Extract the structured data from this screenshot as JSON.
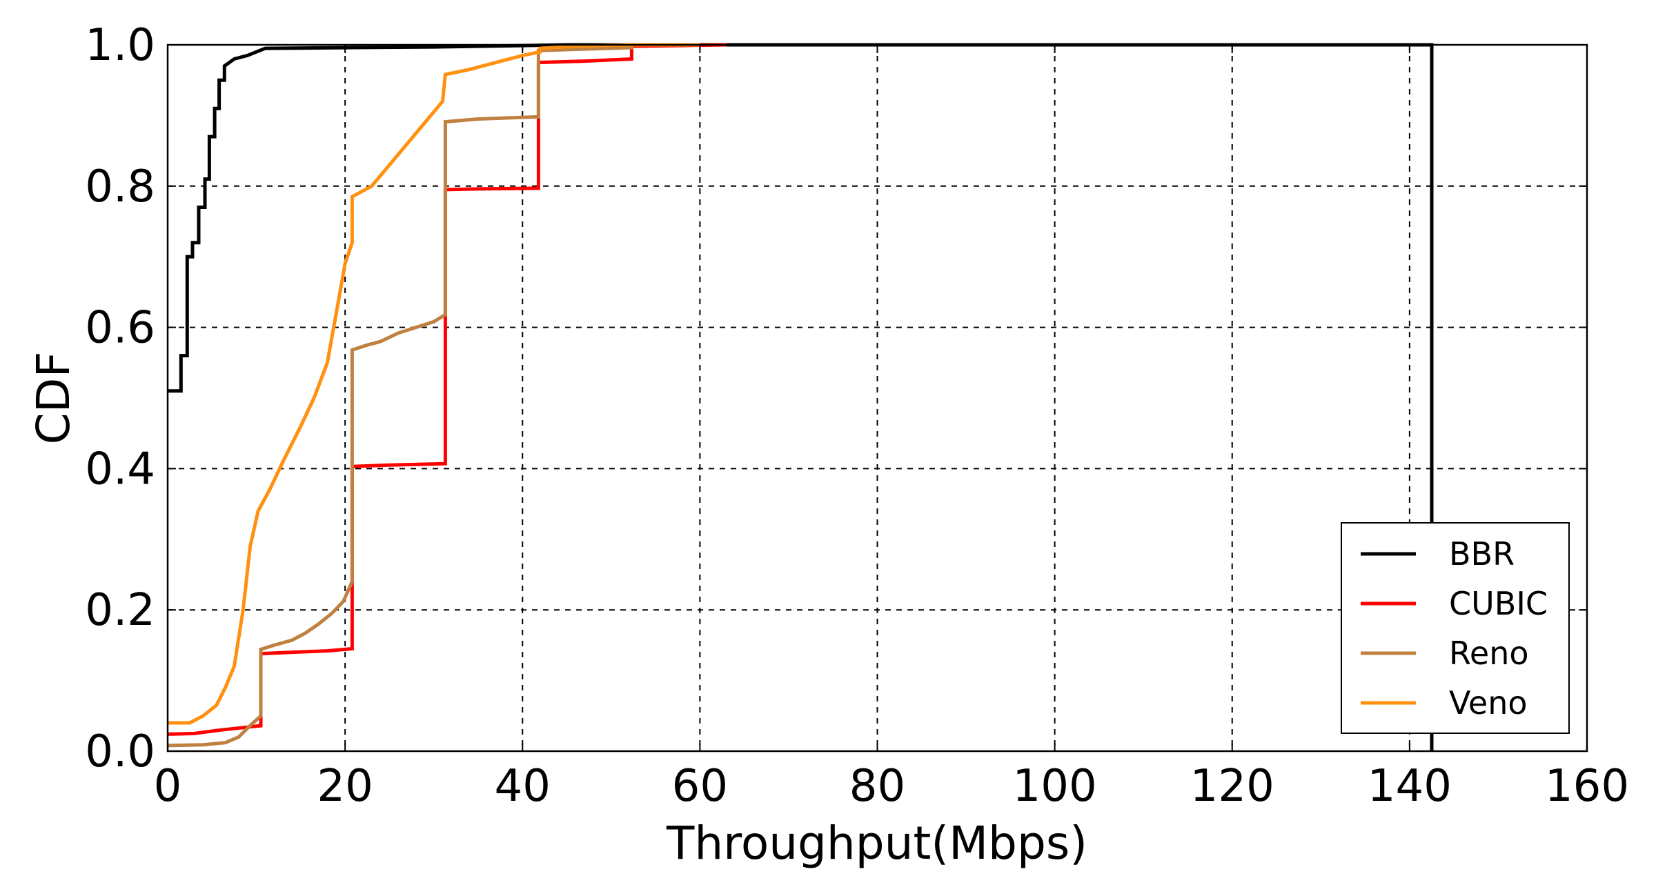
{
  "chart_data": {
    "type": "line",
    "xlabel": "Throughput(Mbps)",
    "ylabel": "CDF",
    "xlim": [
      0,
      160
    ],
    "ylim": [
      0,
      1.0
    ],
    "xticks": [
      0,
      20,
      40,
      60,
      80,
      100,
      120,
      140,
      160
    ],
    "xtick_labels": [
      "0",
      "20",
      "40",
      "60",
      "80",
      "100",
      "120",
      "140",
      "160"
    ],
    "yticks": [
      0.0,
      0.2,
      0.4,
      0.6,
      0.8,
      1.0
    ],
    "ytick_labels": [
      "0.0",
      "0.2",
      "0.4",
      "0.6",
      "0.8",
      "1.0"
    ],
    "grid": true,
    "legend_position": "lower-right",
    "series": [
      {
        "name": "BBR",
        "color": "#000000",
        "points": [
          [
            0,
            0.51
          ],
          [
            1.5,
            0.51
          ],
          [
            1.5,
            0.56
          ],
          [
            2.2,
            0.56
          ],
          [
            2.2,
            0.7
          ],
          [
            2.8,
            0.7
          ],
          [
            2.8,
            0.72
          ],
          [
            3.5,
            0.72
          ],
          [
            3.5,
            0.77
          ],
          [
            4.2,
            0.77
          ],
          [
            4.2,
            0.81
          ],
          [
            4.7,
            0.81
          ],
          [
            4.7,
            0.87
          ],
          [
            5.3,
            0.87
          ],
          [
            5.3,
            0.91
          ],
          [
            5.8,
            0.91
          ],
          [
            5.8,
            0.95
          ],
          [
            6.4,
            0.95
          ],
          [
            6.4,
            0.97
          ],
          [
            7.5,
            0.98
          ],
          [
            9,
            0.985
          ],
          [
            10,
            0.99
          ],
          [
            11,
            0.995
          ],
          [
            20,
            0.996
          ],
          [
            30,
            0.997
          ],
          [
            45,
            1.0
          ],
          [
            142.5,
            1.0
          ],
          [
            142.5,
            0.0
          ]
        ]
      },
      {
        "name": "CUBIC",
        "color": "#ff0000",
        "points": [
          [
            0,
            0.024
          ],
          [
            3,
            0.025
          ],
          [
            6,
            0.03
          ],
          [
            9,
            0.034
          ],
          [
            10.5,
            0.036
          ],
          [
            10.5,
            0.138
          ],
          [
            14,
            0.14
          ],
          [
            18,
            0.142
          ],
          [
            20.8,
            0.145
          ],
          [
            20.8,
            0.403
          ],
          [
            25,
            0.405
          ],
          [
            31.3,
            0.407
          ],
          [
            31.3,
            0.795
          ],
          [
            35,
            0.796
          ],
          [
            41.8,
            0.797
          ],
          [
            41.8,
            0.975
          ],
          [
            47,
            0.977
          ],
          [
            52.3,
            0.98
          ],
          [
            52.3,
            0.998
          ],
          [
            58,
            0.999
          ],
          [
            63,
            1.0
          ]
        ]
      },
      {
        "name": "Reno",
        "color": "#c08040",
        "points": [
          [
            0,
            0.008
          ],
          [
            4,
            0.009
          ],
          [
            6.5,
            0.012
          ],
          [
            8,
            0.02
          ],
          [
            9.2,
            0.035
          ],
          [
            10.5,
            0.05
          ],
          [
            10.5,
            0.144
          ],
          [
            12,
            0.15
          ],
          [
            14,
            0.157
          ],
          [
            15.5,
            0.167
          ],
          [
            17,
            0.18
          ],
          [
            18.5,
            0.195
          ],
          [
            19.8,
            0.212
          ],
          [
            20.8,
            0.24
          ],
          [
            20.8,
            0.568
          ],
          [
            22.5,
            0.575
          ],
          [
            24,
            0.58
          ],
          [
            26,
            0.592
          ],
          [
            28,
            0.6
          ],
          [
            30,
            0.608
          ],
          [
            31.3,
            0.618
          ],
          [
            31.3,
            0.891
          ],
          [
            35,
            0.895
          ],
          [
            41.8,
            0.898
          ],
          [
            41.8,
            0.992
          ],
          [
            47,
            0.994
          ],
          [
            52.3,
            0.996
          ],
          [
            52.3,
            1.0
          ],
          [
            60,
            1.0
          ]
        ]
      },
      {
        "name": "Veno",
        "color": "#ff9010",
        "points": [
          [
            0,
            0.04
          ],
          [
            2.5,
            0.04
          ],
          [
            4,
            0.05
          ],
          [
            5.5,
            0.065
          ],
          [
            6.5,
            0.09
          ],
          [
            7.5,
            0.12
          ],
          [
            8.5,
            0.2
          ],
          [
            9.3,
            0.29
          ],
          [
            10.2,
            0.34
          ],
          [
            11.5,
            0.37
          ],
          [
            13,
            0.41
          ],
          [
            15,
            0.46
          ],
          [
            16.5,
            0.5
          ],
          [
            18,
            0.55
          ],
          [
            19,
            0.62
          ],
          [
            20,
            0.69
          ],
          [
            20.8,
            0.72
          ],
          [
            20.8,
            0.785
          ],
          [
            23,
            0.8
          ],
          [
            25,
            0.83
          ],
          [
            27,
            0.86
          ],
          [
            29,
            0.89
          ],
          [
            31,
            0.92
          ],
          [
            31.3,
            0.958
          ],
          [
            34,
            0.965
          ],
          [
            37,
            0.975
          ],
          [
            40,
            0.985
          ],
          [
            42,
            0.99
          ],
          [
            42,
            0.995
          ],
          [
            46,
            0.998
          ],
          [
            52,
            1.0
          ],
          [
            60,
            1.0
          ]
        ]
      }
    ]
  }
}
